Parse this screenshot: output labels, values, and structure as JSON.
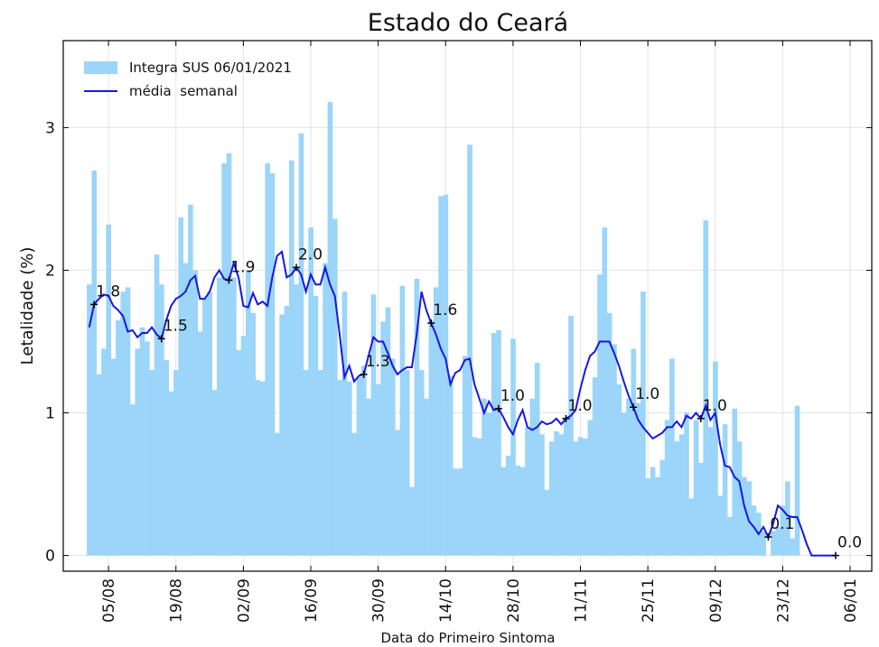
{
  "chart_data": {
    "type": "bar",
    "title": "Estado do Ceará",
    "xlabel": "Data do Primeiro Sintoma",
    "ylabel": "Letalidade (%)",
    "ylim": [
      -0.11,
      3.61
    ],
    "yticks": [
      0,
      1,
      2,
      3
    ],
    "grid": true,
    "legend": "upper left",
    "categories": [
      null,
      null,
      null,
      null,
      "05/08",
      null,
      null,
      null,
      null,
      null,
      null,
      null,
      null,
      null,
      null,
      null,
      null,
      null,
      "19/08",
      null,
      null,
      null,
      null,
      null,
      null,
      null,
      null,
      null,
      null,
      null,
      null,
      null,
      "02/09",
      null,
      null,
      null,
      null,
      null,
      null,
      null,
      null,
      null,
      null,
      null,
      null,
      null,
      "16/09",
      null,
      null,
      null,
      null,
      null,
      null,
      null,
      null,
      null,
      null,
      null,
      null,
      null,
      "30/09",
      null,
      null,
      null,
      null,
      null,
      null,
      null,
      null,
      null,
      null,
      null,
      null,
      null,
      "14/10",
      null,
      null,
      null,
      null,
      null,
      null,
      null,
      null,
      null,
      null,
      null,
      null,
      null,
      "28/10",
      null,
      null,
      null,
      null,
      null,
      null,
      null,
      null,
      null,
      null,
      null,
      null,
      null,
      "11/11",
      null,
      null,
      null,
      null,
      null,
      null,
      null,
      null,
      null,
      null,
      null,
      null,
      null,
      "25/11",
      null,
      null,
      null,
      null,
      null,
      null,
      null,
      null,
      null,
      null,
      null,
      null,
      null,
      "09/12",
      null,
      null,
      null,
      null,
      null,
      null,
      null,
      null,
      null,
      null,
      null,
      null,
      null,
      "23/12",
      null,
      null,
      null,
      null,
      null,
      null,
      null,
      null,
      null,
      null,
      null,
      null,
      null,
      "06/01"
    ],
    "series": [
      {
        "name": "Integra SUS 06/01/2021",
        "type": "bar",
        "color": "#9bd5f9",
        "values": [
          1.9,
          2.7,
          1.27,
          1.45,
          2.32,
          1.38,
          1.65,
          1.85,
          1.88,
          1.06,
          1.45,
          1.6,
          1.5,
          1.3,
          2.11,
          1.9,
          1.37,
          1.15,
          1.3,
          2.37,
          2.05,
          2.46,
          2.0,
          1.57,
          1.8,
          1.85,
          1.16,
          1.95,
          2.75,
          2.82,
          1.95,
          1.44,
          1.54,
          2.0,
          1.7,
          1.23,
          1.22,
          2.75,
          2.68,
          0.86,
          1.69,
          1.75,
          2.77,
          1.9,
          2.96,
          1.3,
          2.3,
          1.82,
          1.3,
          2.05,
          3.18,
          2.36,
          1.23,
          1.85,
          1.22,
          0.86,
          1.25,
          1.33,
          1.1,
          1.83,
          1.2,
          1.64,
          1.74,
          1.38,
          0.88,
          1.89,
          1.3,
          0.48,
          1.94,
          1.3,
          1.1,
          1.65,
          1.88,
          2.52,
          2.53,
          1.26,
          0.61,
          0.61,
          1.4,
          2.88,
          0.83,
          0.82,
          1.1,
          1.0,
          1.56,
          1.58,
          0.62,
          0.7,
          1.52,
          0.63,
          0.62,
          0.9,
          1.1,
          1.35,
          0.85,
          0.46,
          0.8,
          0.87,
          0.85,
          0.97,
          1.68,
          0.8,
          0.83,
          0.82,
          0.95,
          1.25,
          1.97,
          2.3,
          1.7,
          1.48,
          1.2,
          1.0,
          1.1,
          1.45,
          1.07,
          1.85,
          0.54,
          0.62,
          0.55,
          0.67,
          0.95,
          1.38,
          0.8,
          0.85,
          1.0,
          0.4,
          0.95,
          0.65,
          2.35,
          0.9,
          1.36,
          0.42,
          0.92,
          0.27,
          1.03,
          0.8,
          0.55,
          0.52,
          0.35,
          0.3,
          0.17,
          0,
          0.17,
          0.2,
          0.35,
          0.52,
          0.12,
          1.05,
          null,
          null,
          null,
          null,
          null,
          null,
          null,
          null,
          null,
          null,
          null
        ]
      },
      {
        "name": "média  semanal",
        "type": "line",
        "color": "#1717e3",
        "values": [
          1.6,
          1.76,
          1.8,
          1.83,
          1.82,
          1.75,
          1.72,
          1.68,
          1.57,
          1.58,
          1.53,
          1.56,
          1.56,
          1.6,
          1.55,
          1.52,
          1.65,
          1.75,
          1.8,
          1.82,
          1.85,
          1.93,
          1.96,
          1.8,
          1.8,
          1.85,
          1.95,
          2.0,
          1.94,
          1.93,
          2.05,
          1.95,
          1.75,
          1.74,
          1.84,
          1.76,
          1.78,
          1.75,
          1.95,
          2.1,
          2.13,
          1.95,
          1.97,
          2.02,
          1.97,
          1.85,
          1.97,
          1.9,
          1.9,
          2.02,
          1.9,
          1.82,
          1.55,
          1.25,
          1.33,
          1.22,
          1.26,
          1.27,
          1.4,
          1.53,
          1.5,
          1.5,
          1.42,
          1.33,
          1.27,
          1.3,
          1.32,
          1.32,
          1.55,
          1.85,
          1.72,
          1.63,
          1.55,
          1.45,
          1.38,
          1.2,
          1.28,
          1.3,
          1.37,
          1.38,
          1.2,
          1.1,
          1.0,
          1.08,
          1.02,
          1.03,
          0.97,
          0.9,
          0.85,
          0.95,
          1.02,
          0.9,
          0.88,
          0.9,
          0.94,
          0.92,
          0.93,
          0.96,
          0.92,
          0.96,
          0.98,
          1.02,
          1.17,
          1.3,
          1.4,
          1.43,
          1.5,
          1.5,
          1.5,
          1.42,
          1.33,
          1.22,
          1.12,
          1.04,
          0.95,
          0.9,
          0.86,
          0.82,
          0.84,
          0.86,
          0.9,
          0.9,
          0.94,
          0.9,
          0.98,
          0.96,
          1.0,
          0.96,
          1.05,
          0.95,
          1.0,
          0.78,
          0.63,
          0.62,
          0.55,
          0.52,
          0.35,
          0.24,
          0.2,
          0.15,
          0.2,
          0.13,
          0.22,
          0.35,
          0.32,
          0.28,
          0.27,
          0.27,
          0.18,
          0.08,
          0,
          0,
          0,
          0,
          0,
          0,
          null,
          null,
          null
        ],
        "value_labels": [
          null,
          "1.8",
          null,
          null,
          null,
          null,
          null,
          null,
          null,
          null,
          null,
          null,
          null,
          null,
          null,
          "1.5",
          null,
          null,
          null,
          null,
          null,
          null,
          null,
          null,
          null,
          null,
          null,
          null,
          null,
          "1.9",
          null,
          null,
          null,
          null,
          null,
          null,
          null,
          null,
          null,
          null,
          null,
          null,
          null,
          "2.0",
          null,
          null,
          null,
          null,
          null,
          null,
          null,
          null,
          null,
          null,
          null,
          null,
          null,
          "1.3",
          null,
          null,
          null,
          null,
          null,
          null,
          null,
          null,
          null,
          null,
          null,
          null,
          null,
          "1.6",
          null,
          null,
          null,
          null,
          null,
          null,
          null,
          null,
          null,
          null,
          null,
          null,
          null,
          "1.0",
          null,
          null,
          null,
          null,
          null,
          null,
          null,
          null,
          null,
          null,
          null,
          null,
          null,
          "1.0",
          null,
          null,
          null,
          null,
          null,
          null,
          null,
          null,
          null,
          null,
          null,
          null,
          null,
          "1.0",
          null,
          null,
          null,
          null,
          null,
          null,
          null,
          null,
          null,
          null,
          null,
          null,
          null,
          "1.0",
          null,
          null,
          null,
          null,
          null,
          null,
          null,
          null,
          null,
          null,
          null,
          null,
          null,
          "0.1",
          null,
          null,
          null,
          null,
          null,
          null,
          null,
          null,
          null,
          null,
          null,
          null,
          null,
          "0.0",
          null,
          null,
          null
        ]
      }
    ]
  }
}
